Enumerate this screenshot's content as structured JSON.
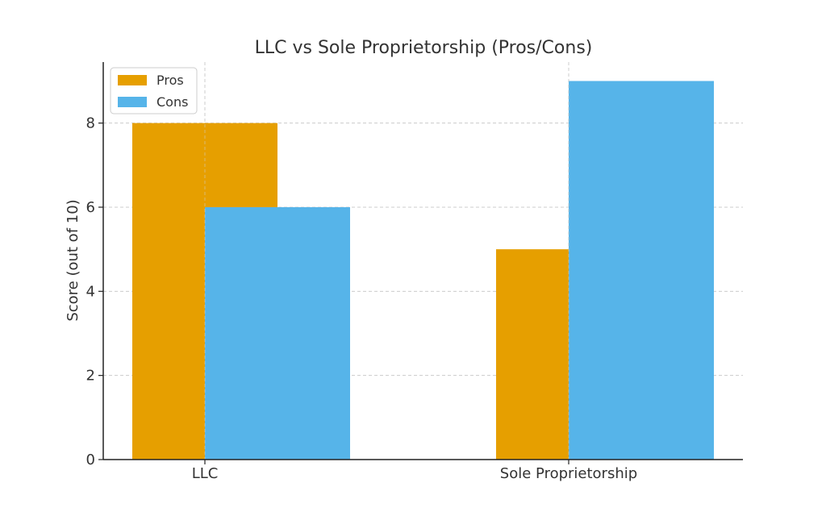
{
  "chart_data": {
    "type": "bar",
    "title": "LLC vs Sole Proprietorship (Pros/Cons)",
    "xlabel": "",
    "ylabel": "Score (out of 10)",
    "categories": [
      "LLC",
      "Sole Proprietorship"
    ],
    "series": [
      {
        "name": "Pros",
        "values": [
          8,
          5
        ],
        "color": "#E69F00"
      },
      {
        "name": "Cons",
        "values": [
          6,
          9
        ],
        "color": "#56B4E9"
      }
    ],
    "ylim": [
      0,
      9.45
    ],
    "yticks": [
      0,
      2,
      4,
      6,
      8
    ],
    "grid": true,
    "legend_position": "top-left"
  }
}
